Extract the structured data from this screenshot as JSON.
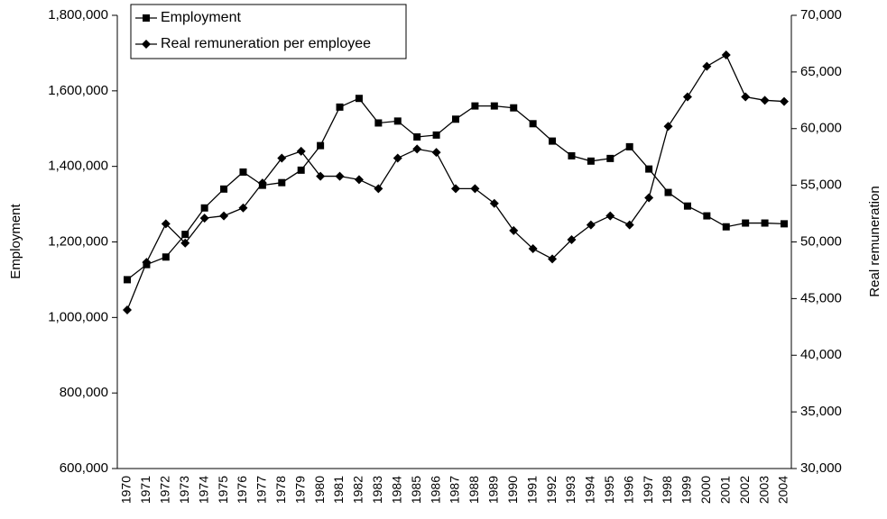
{
  "chart_data": {
    "type": "line",
    "y_label": "Employment",
    "y2_label": "Real remuneration",
    "categories": [
      "1970",
      "1971",
      "1972",
      "1973",
      "1974",
      "1975",
      "1976",
      "1977",
      "1978",
      "1979",
      "1980",
      "1981",
      "1982",
      "1983",
      "1984",
      "1985",
      "1986",
      "1987",
      "1988",
      "1989",
      "1990",
      "1991",
      "1992",
      "1993",
      "1994",
      "1995",
      "1996",
      "1997",
      "1998",
      "1999",
      "2000",
      "2001",
      "2002",
      "2003",
      "2004"
    ],
    "series": [
      {
        "name": "Employment",
        "color": "#000000",
        "marker": "square",
        "axis": "y",
        "values": [
          1100000,
          1140000,
          1160000,
          1220000,
          1290000,
          1340000,
          1385000,
          1350000,
          1357000,
          1390000,
          1455000,
          1557000,
          1580000,
          1515000,
          1520000,
          1478000,
          1483000,
          1525000,
          1560000,
          1560000,
          1555000,
          1513000,
          1467000,
          1428000,
          1414000,
          1421000,
          1452000,
          1393000,
          1331000,
          1295000,
          1269000,
          1240000,
          1250000,
          1250000,
          1248000
        ]
      },
      {
        "name": "Real remuneration per employee",
        "color": "#000000",
        "marker": "diamond",
        "axis": "y2",
        "values": [
          44000,
          48200,
          51600,
          49900,
          52100,
          52300,
          53000,
          55200,
          57400,
          58000,
          55800,
          55800,
          55500,
          54700,
          57400,
          58200,
          57900,
          54700,
          54700,
          53400,
          51000,
          49400,
          48500,
          50200,
          51500,
          52300,
          51500,
          53900,
          60200,
          62800,
          65500,
          66500,
          62800,
          62500,
          62400
        ]
      }
    ],
    "ylim": [
      600000,
      1800000
    ],
    "yticks": [
      {
        "value": 600000,
        "label": "600,000"
      },
      {
        "value": 800000,
        "label": "800,000"
      },
      {
        "value": 1000000,
        "label": "1,000,000"
      },
      {
        "value": 1200000,
        "label": "1,200,000"
      },
      {
        "value": 1400000,
        "label": "1,400,000"
      },
      {
        "value": 1600000,
        "label": "1,600,000"
      },
      {
        "value": 1800000,
        "label": "1,800,000"
      }
    ],
    "y2lim": [
      30000,
      70000
    ],
    "y2ticks": [
      {
        "value": 30000,
        "label": "30,000"
      },
      {
        "value": 35000,
        "label": "35,000"
      },
      {
        "value": 40000,
        "label": "40,000"
      },
      {
        "value": 45000,
        "label": "45,000"
      },
      {
        "value": 50000,
        "label": "50,000"
      },
      {
        "value": 55000,
        "label": "55,000"
      },
      {
        "value": 60000,
        "label": "60,000"
      },
      {
        "value": 65000,
        "label": "65,000"
      },
      {
        "value": 70000,
        "label": "70,000"
      }
    ],
    "legend": "upper left"
  }
}
